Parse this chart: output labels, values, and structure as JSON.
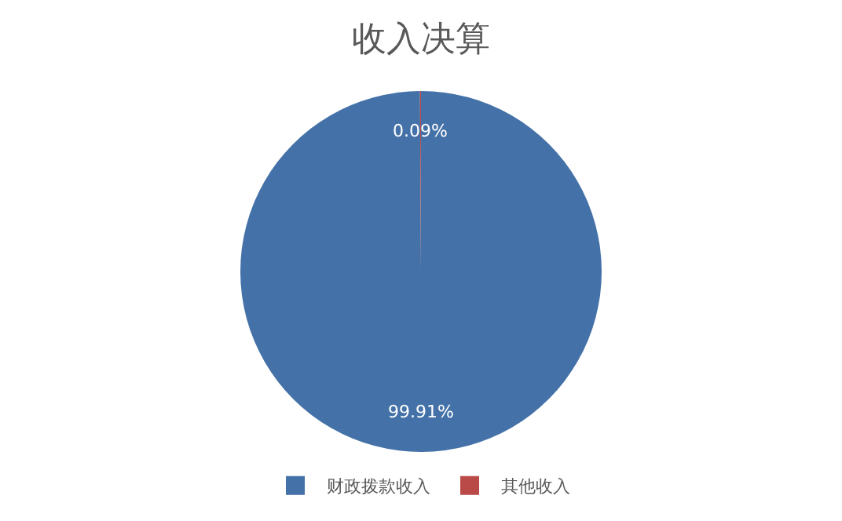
{
  "chart_data": {
    "type": "pie",
    "title": "收入决算",
    "categories": [
      "财政拨款收入",
      "其他收入"
    ],
    "values": [
      99.91,
      0.09
    ],
    "colors": [
      "#4472a8",
      "#b94a48"
    ],
    "value_labels": [
      "99.91%",
      "0.09%"
    ],
    "legend": "bottom"
  }
}
